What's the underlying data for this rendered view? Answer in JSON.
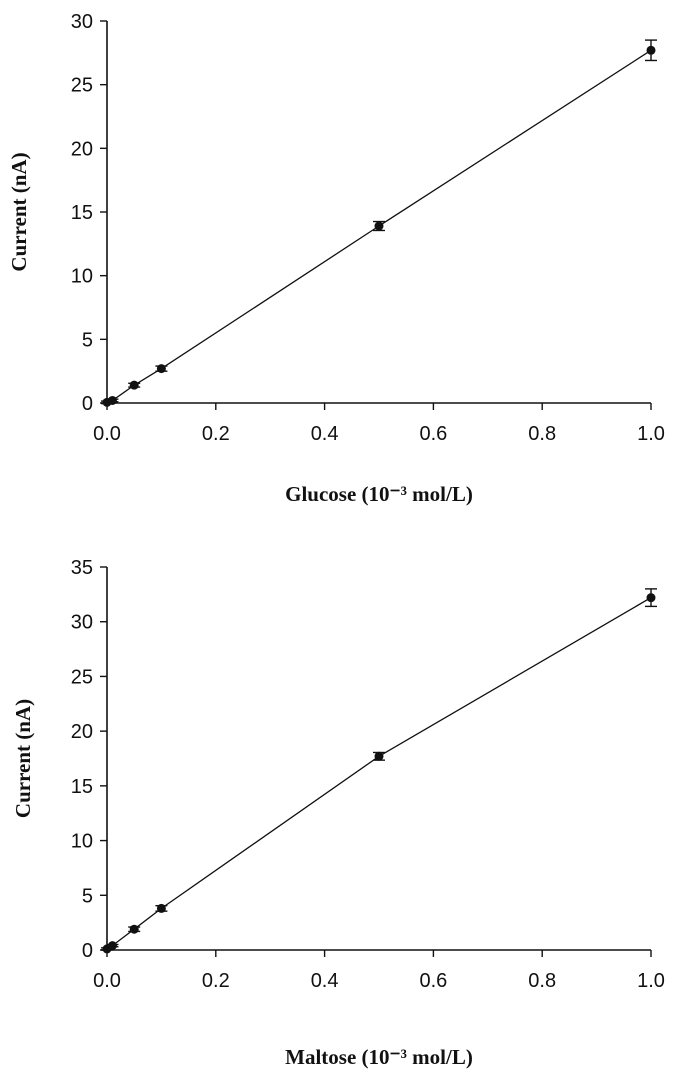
{
  "chart_data": [
    {
      "type": "scatter",
      "title": "",
      "xlabel": "Glucose (10⁻³ mol/L)",
      "ylabel": "Current (nA)",
      "xlim": [
        0.0,
        1.0
      ],
      "ylim": [
        0,
        30
      ],
      "x_ticks": [
        "0.0",
        "0.2",
        "0.4",
        "0.6",
        "0.8",
        "1.0"
      ],
      "y_ticks": [
        "0",
        "5",
        "10",
        "15",
        "20",
        "25",
        "30"
      ],
      "grid": false,
      "fit_line": true,
      "series": [
        {
          "x": [
            0.0,
            0.01,
            0.05,
            0.1,
            0.5,
            1.0
          ],
          "y": [
            0.05,
            0.2,
            1.4,
            2.7,
            13.9,
            27.7
          ],
          "error": [
            0.1,
            0.1,
            0.15,
            0.2,
            0.35,
            0.8
          ]
        }
      ]
    },
    {
      "type": "scatter",
      "title": "",
      "xlabel": "Maltose (10⁻³ mol/L)",
      "ylabel": "Current (nA)",
      "xlim": [
        0.0,
        1.0
      ],
      "ylim": [
        0,
        35
      ],
      "x_ticks": [
        "0.0",
        "0.2",
        "0.4",
        "0.6",
        "0.8",
        "1.0"
      ],
      "y_ticks": [
        "0",
        "5",
        "10",
        "15",
        "20",
        "25",
        "30",
        "35"
      ],
      "grid": false,
      "fit_line": true,
      "series": [
        {
          "x": [
            0.0,
            0.01,
            0.05,
            0.1,
            0.5,
            1.0
          ],
          "y": [
            0.1,
            0.4,
            1.9,
            3.8,
            17.7,
            32.2
          ],
          "error": [
            0.1,
            0.1,
            0.2,
            0.25,
            0.35,
            0.8
          ]
        }
      ]
    }
  ]
}
